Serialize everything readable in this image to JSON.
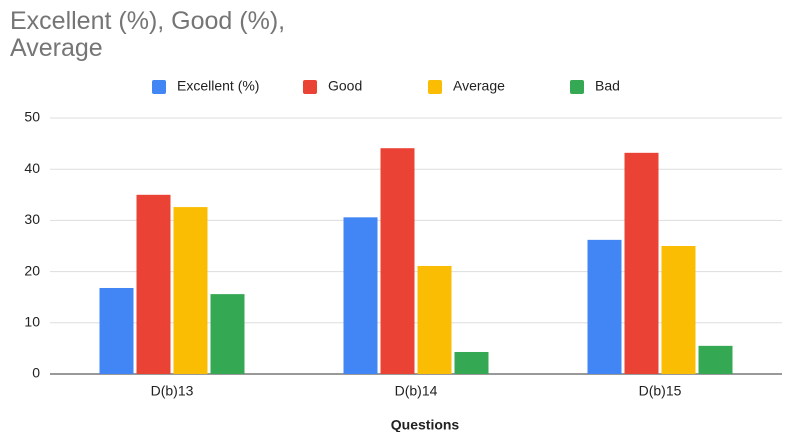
{
  "chart_data": {
    "type": "bar",
    "title": "Excellent (%), Good (%), Average",
    "x_label": "Questions",
    "categories": [
      "D(b)13",
      "D(b)14",
      "D(b)15"
    ],
    "series": [
      {
        "name": "Excellent (%)",
        "color": "#4285f4",
        "values": [
          16.8,
          30.6,
          26.2
        ]
      },
      {
        "name": "Good",
        "color": "#ea4335",
        "values": [
          35,
          44.1,
          43.2
        ]
      },
      {
        "name": "Average",
        "color": "#fbbc04",
        "values": [
          32.6,
          21.1,
          25
        ]
      },
      {
        "name": "Bad",
        "color": "#34a853",
        "values": [
          15.6,
          4.3,
          5.5
        ]
      }
    ],
    "ylim": [
      0,
      50
    ],
    "yticks": [
      0,
      10,
      20,
      30,
      40,
      50
    ],
    "grid": true,
    "legend": "top"
  }
}
